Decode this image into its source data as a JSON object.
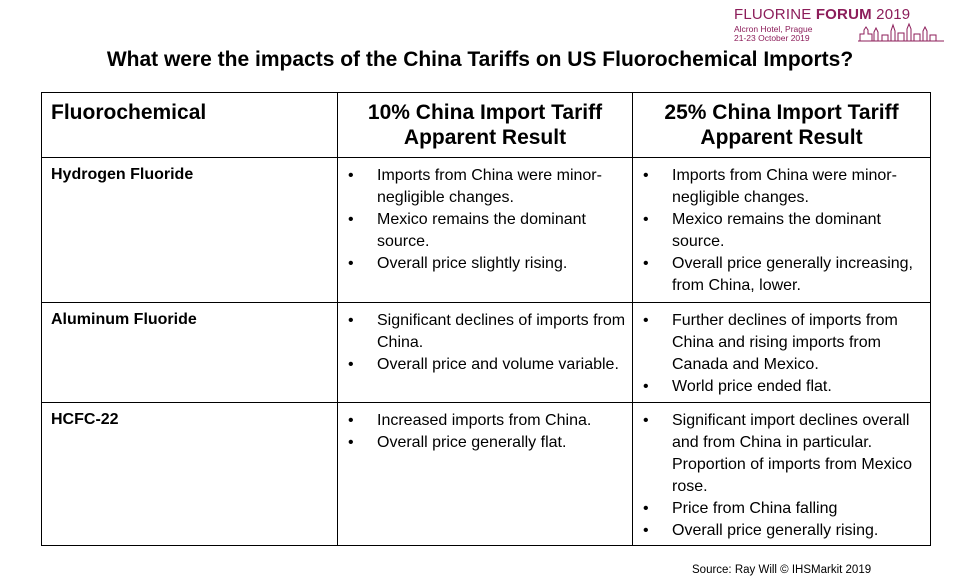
{
  "logo": {
    "title_regular_1": "FLUORINE ",
    "title_bold": "FORUM",
    "title_regular_2": " 2019",
    "venue": "Alcron Hotel, Prague",
    "dates": "21-23 October 2019"
  },
  "title": "What were the impacts of the China Tariffs on US Fluorochemical Imports?",
  "table": {
    "headers": [
      "Fluorochemical",
      "10%  China Import Tariff Apparent Result",
      "25%  China Import Tariff Apparent Result"
    ],
    "bullet_char": "•",
    "rows": [
      {
        "name": "Hydrogen Fluoride",
        "col10": [
          "Imports from China were minor-negligible changes.",
          "Mexico remains the dominant source.",
          "Overall price slightly rising."
        ],
        "col25": [
          "Imports from China were minor-negligible changes.",
          "Mexico remains the dominant source.",
          "Overall price generally increasing, from China, lower."
        ]
      },
      {
        "name": "Aluminum Fluoride",
        "col10": [
          "Significant declines of imports from China.",
          "Overall price and volume variable."
        ],
        "col25": [
          "Further declines of imports from China and rising imports from Canada and Mexico.",
          "World price ended flat."
        ]
      },
      {
        "name": "HCFC-22",
        "col10": [
          "Increased imports from China.",
          "Overall price generally flat."
        ],
        "col25": [
          "Significant import declines overall and from China in particular.   Proportion of imports from Mexico rose.",
          "Price from China falling",
          "Overall price generally rising."
        ]
      }
    ]
  },
  "source": "Source: Ray Will  © IHSMarkit 2019",
  "colors": {
    "logo": "#8c1d5a",
    "border": "#000000"
  }
}
